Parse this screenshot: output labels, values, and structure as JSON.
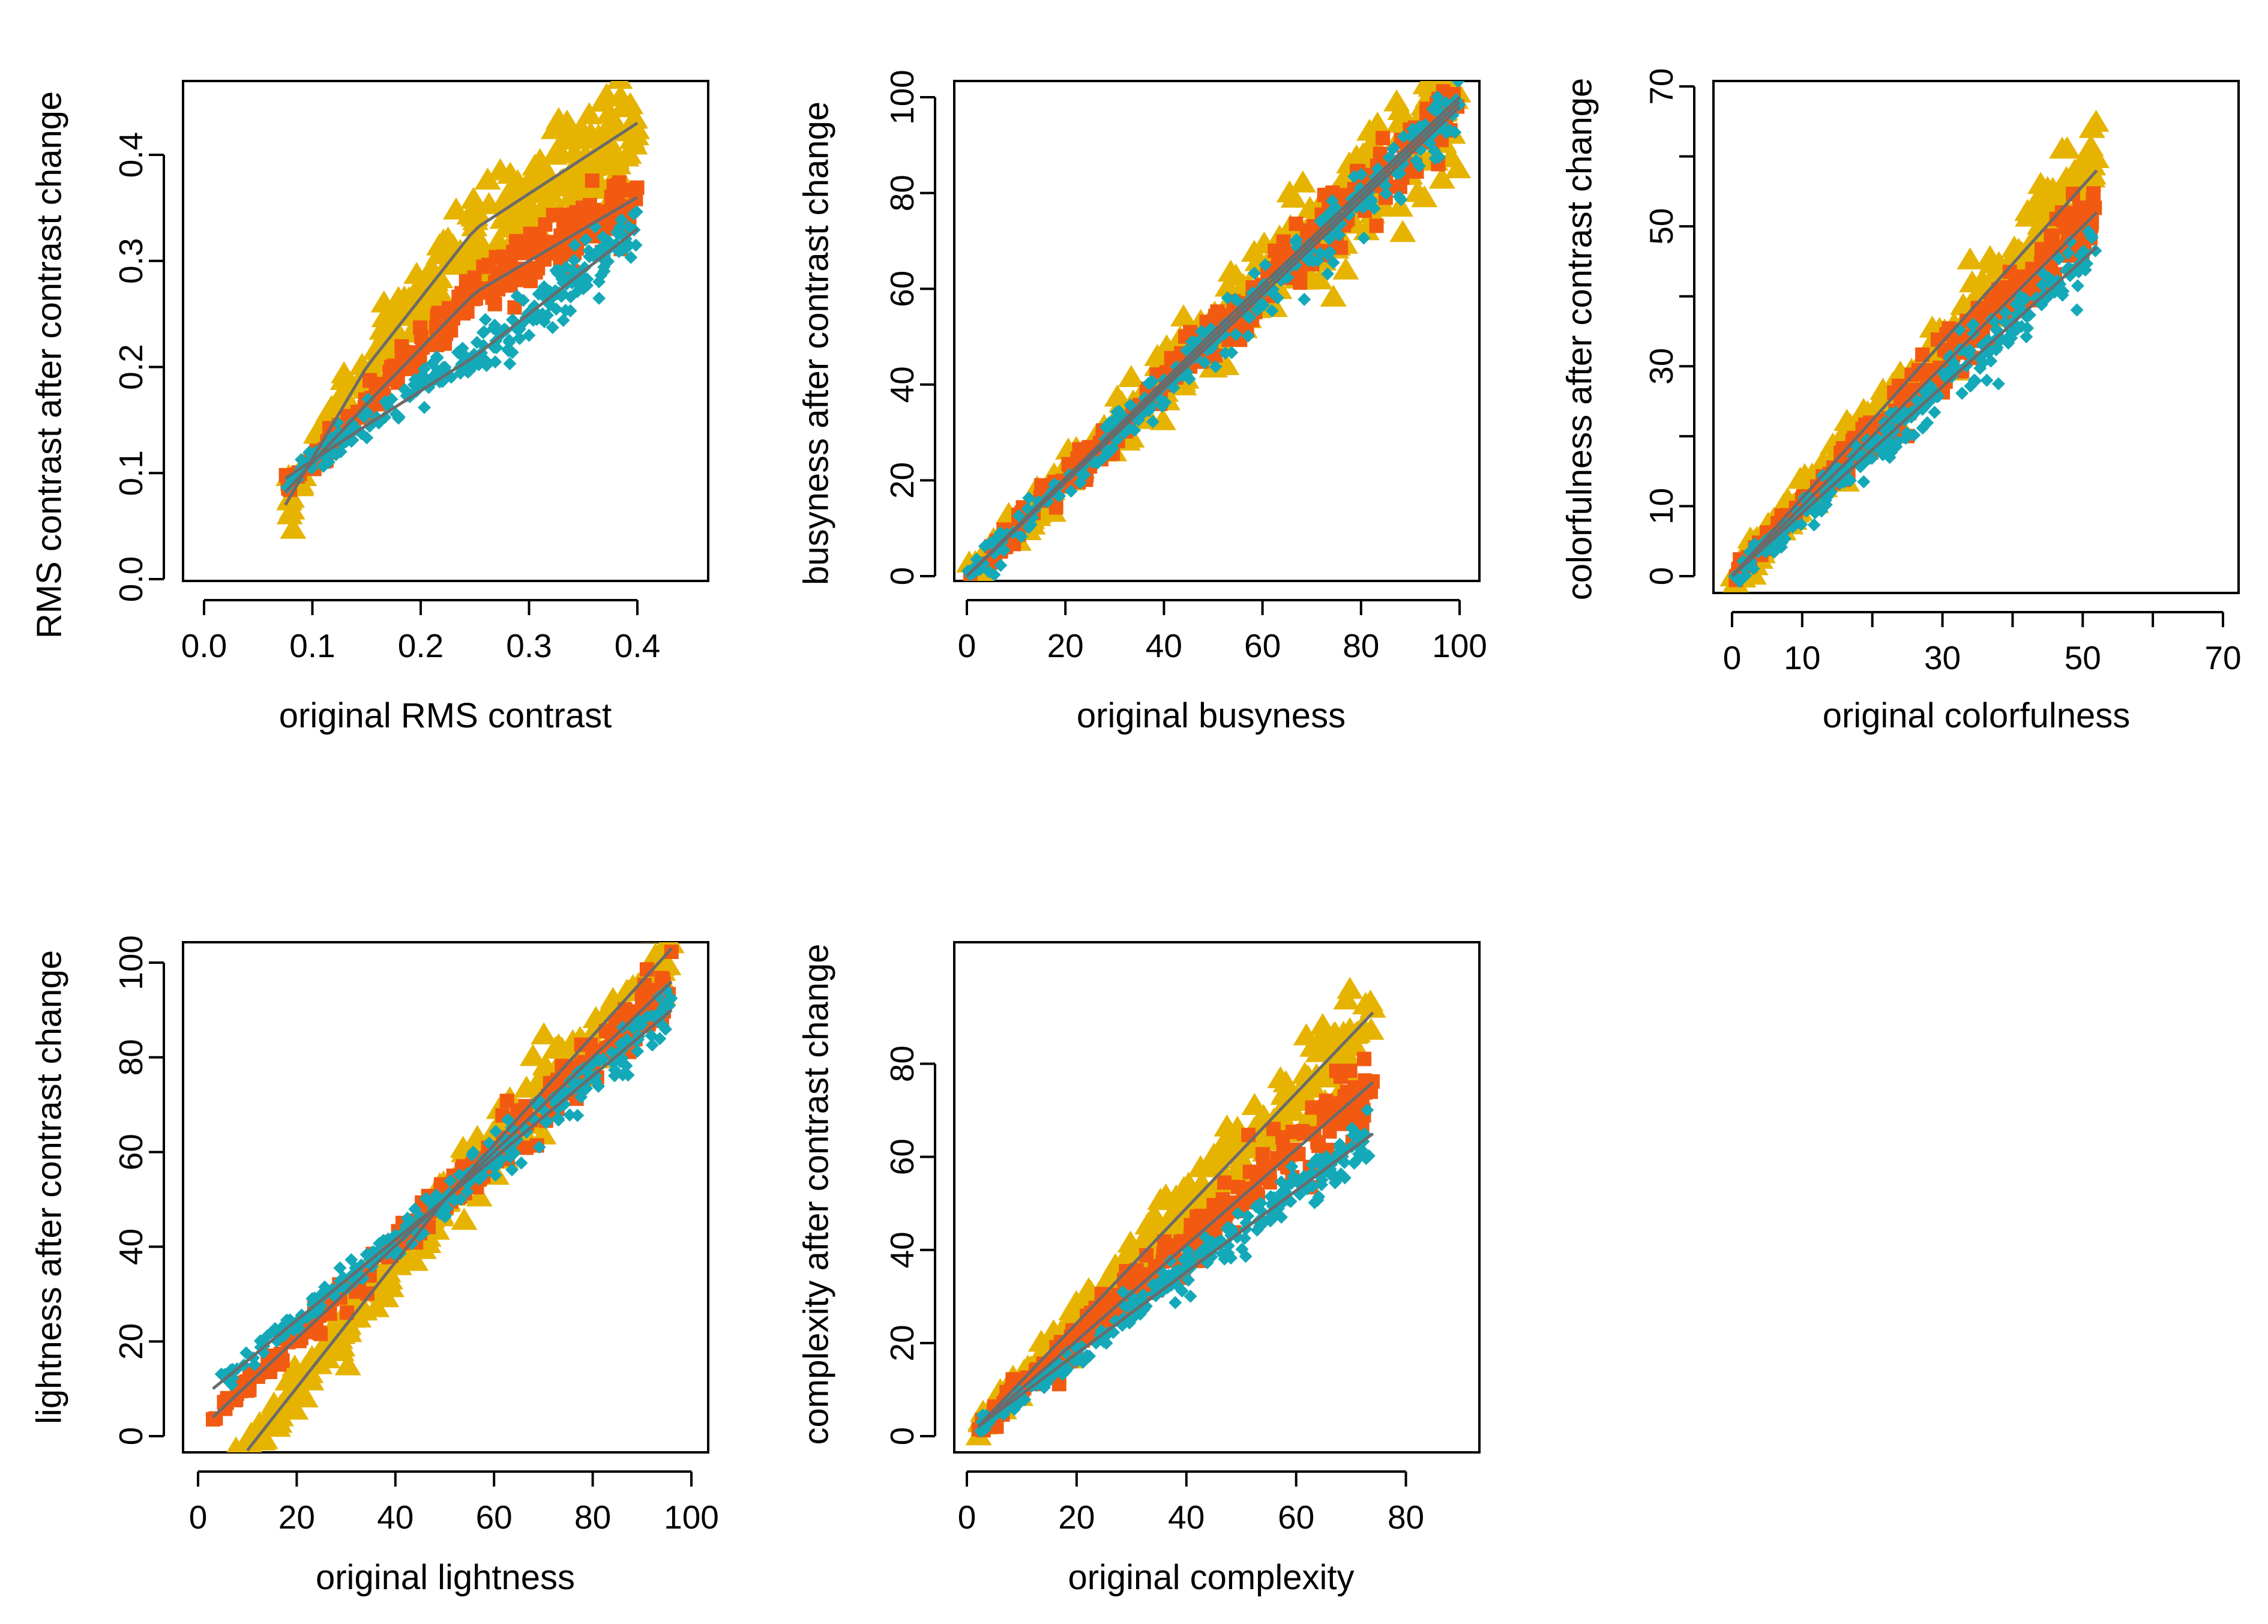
{
  "colors": {
    "high": "#E6B400",
    "medium": "#F25A12",
    "low": "#14A9B8",
    "fit": "#6B6B6B",
    "axis": "#000000"
  },
  "chart_data": [
    {
      "type": "scatter",
      "xlabel": "original RMS contrast",
      "ylabel": "RMS contrast after contrast change",
      "xlim": [
        0.0,
        0.4
      ],
      "ylim": [
        0.0,
        0.4
      ],
      "xticks": [
        0.0,
        0.1,
        0.2,
        0.3,
        0.4
      ],
      "xtick_labels": [
        "0.0",
        "0.1",
        "0.2",
        "0.3",
        "0.4"
      ],
      "yticks": [
        0.0,
        0.1,
        0.2,
        0.3,
        0.4
      ],
      "ytick_labels": [
        "0.0",
        "0.1",
        "0.2",
        "0.3",
        "0.4"
      ],
      "point_range": [
        0.075,
        0.4
      ],
      "series": [
        {
          "marker": "triangle",
          "color": "#E6B400",
          "fit": [
            [
              0.075,
              0.07
            ],
            [
              0.15,
              0.2
            ],
            [
              0.25,
              0.33
            ],
            [
              0.4,
              0.43
            ]
          ],
          "spread": 0.028
        },
        {
          "marker": "square",
          "color": "#F25A12",
          "fit": [
            [
              0.075,
              0.082
            ],
            [
              0.15,
              0.165
            ],
            [
              0.25,
              0.27
            ],
            [
              0.4,
              0.36
            ]
          ],
          "spread": 0.016
        },
        {
          "marker": "diamond",
          "color": "#14A9B8",
          "fit": [
            [
              0.075,
              0.095
            ],
            [
              0.15,
              0.145
            ],
            [
              0.25,
              0.21
            ],
            [
              0.4,
              0.33
            ]
          ],
          "spread": 0.015
        }
      ]
    },
    {
      "type": "scatter",
      "xlabel": "original busyness",
      "ylabel": "busyness after contrast change",
      "xlim": [
        0,
        100
      ],
      "ylim": [
        0,
        100
      ],
      "xticks": [
        0,
        20,
        40,
        60,
        80,
        100
      ],
      "xtick_labels": [
        "0",
        "20",
        "40",
        "60",
        "80",
        "100"
      ],
      "yticks": [
        0,
        20,
        40,
        60,
        80,
        100
      ],
      "ytick_labels": [
        "0",
        "20",
        "40",
        "60",
        "80",
        "100"
      ],
      "point_range": [
        0,
        100
      ],
      "series": [
        {
          "marker": "triangle",
          "color": "#E6B400",
          "fit": [
            [
              0,
              0
            ],
            [
              50,
              51
            ],
            [
              100,
              100
            ]
          ],
          "spread": 7
        },
        {
          "marker": "square",
          "color": "#F25A12",
          "fit": [
            [
              0,
              0
            ],
            [
              50,
              50
            ],
            [
              100,
              99
            ]
          ],
          "spread": 4
        },
        {
          "marker": "diamond",
          "color": "#14A9B8",
          "fit": [
            [
              0,
              0
            ],
            [
              50,
              49
            ],
            [
              100,
              98
            ]
          ],
          "spread": 4
        }
      ]
    },
    {
      "type": "scatter",
      "xlabel": "original colorfulness",
      "ylabel": "colorfulness after contrast change",
      "xlim": [
        0,
        70
      ],
      "ylim": [
        0,
        70
      ],
      "xticks": [
        0,
        10,
        20,
        30,
        40,
        50,
        60,
        70
      ],
      "xtick_labels": [
        "0",
        "10",
        "",
        "30",
        "",
        "50",
        "",
        "70"
      ],
      "yticks": [
        0,
        10,
        20,
        30,
        40,
        50,
        60,
        70
      ],
      "ytick_labels": [
        "0",
        "10",
        "",
        "30",
        "",
        "50",
        "",
        "70"
      ],
      "point_range": [
        0,
        52
      ],
      "series": [
        {
          "marker": "triangle",
          "color": "#E6B400",
          "fit": [
            [
              0,
              0
            ],
            [
              52,
              58
            ]
          ],
          "spread": 3.5
        },
        {
          "marker": "square",
          "color": "#F25A12",
          "fit": [
            [
              0,
              0
            ],
            [
              52,
              52
            ]
          ],
          "spread": 2.5
        },
        {
          "marker": "diamond",
          "color": "#14A9B8",
          "fit": [
            [
              0,
              0
            ],
            [
              52,
              47
            ]
          ],
          "spread": 2.5
        }
      ]
    },
    {
      "type": "scatter",
      "xlabel": "original lightness",
      "ylabel": "lightness after contrast change",
      "xlim": [
        0,
        100
      ],
      "ylim": [
        0,
        100
      ],
      "xticks": [
        0,
        20,
        40,
        60,
        80,
        100
      ],
      "xtick_labels": [
        "0",
        "20",
        "40",
        "60",
        "80",
        "100"
      ],
      "yticks": [
        0,
        20,
        40,
        60,
        80,
        100
      ],
      "ytick_labels": [
        "0",
        "20",
        "40",
        "60",
        "80",
        "100"
      ],
      "point_range": [
        3,
        96
      ],
      "series": [
        {
          "marker": "triangle",
          "color": "#E6B400",
          "fit": [
            [
              10,
              -3
            ],
            [
              50,
              50
            ],
            [
              96,
              103
            ]
          ],
          "spread": 5
        },
        {
          "marker": "square",
          "color": "#F25A12",
          "fit": [
            [
              3,
              4
            ],
            [
              50,
              50
            ],
            [
              96,
              96
            ]
          ],
          "spread": 3
        },
        {
          "marker": "diamond",
          "color": "#14A9B8",
          "fit": [
            [
              3,
              10
            ],
            [
              50,
              50
            ],
            [
              96,
              90
            ]
          ],
          "spread": 3
        }
      ]
    },
    {
      "type": "scatter",
      "xlabel": "original complexity",
      "ylabel": "complexity after contrast change",
      "xlim": [
        0,
        90
      ],
      "ylim": [
        0,
        90
      ],
      "xticks": [
        0,
        20,
        40,
        60,
        80
      ],
      "xtick_labels": [
        "0",
        "20",
        "40",
        "60",
        "80"
      ],
      "yticks": [
        0,
        20,
        40,
        60,
        80
      ],
      "ytick_labels": [
        "0",
        "20",
        "40",
        "60",
        "80"
      ],
      "point_range": [
        2,
        74
      ],
      "series": [
        {
          "marker": "triangle",
          "color": "#E6B400",
          "fit": [
            [
              2,
              2
            ],
            [
              74,
              91
            ]
          ],
          "spread": 5
        },
        {
          "marker": "square",
          "color": "#F25A12",
          "fit": [
            [
              2,
              2
            ],
            [
              74,
              76
            ]
          ],
          "spread": 4
        },
        {
          "marker": "diamond",
          "color": "#14A9B8",
          "fit": [
            [
              2,
              2
            ],
            [
              74,
              65
            ]
          ],
          "spread": 3
        }
      ]
    }
  ]
}
